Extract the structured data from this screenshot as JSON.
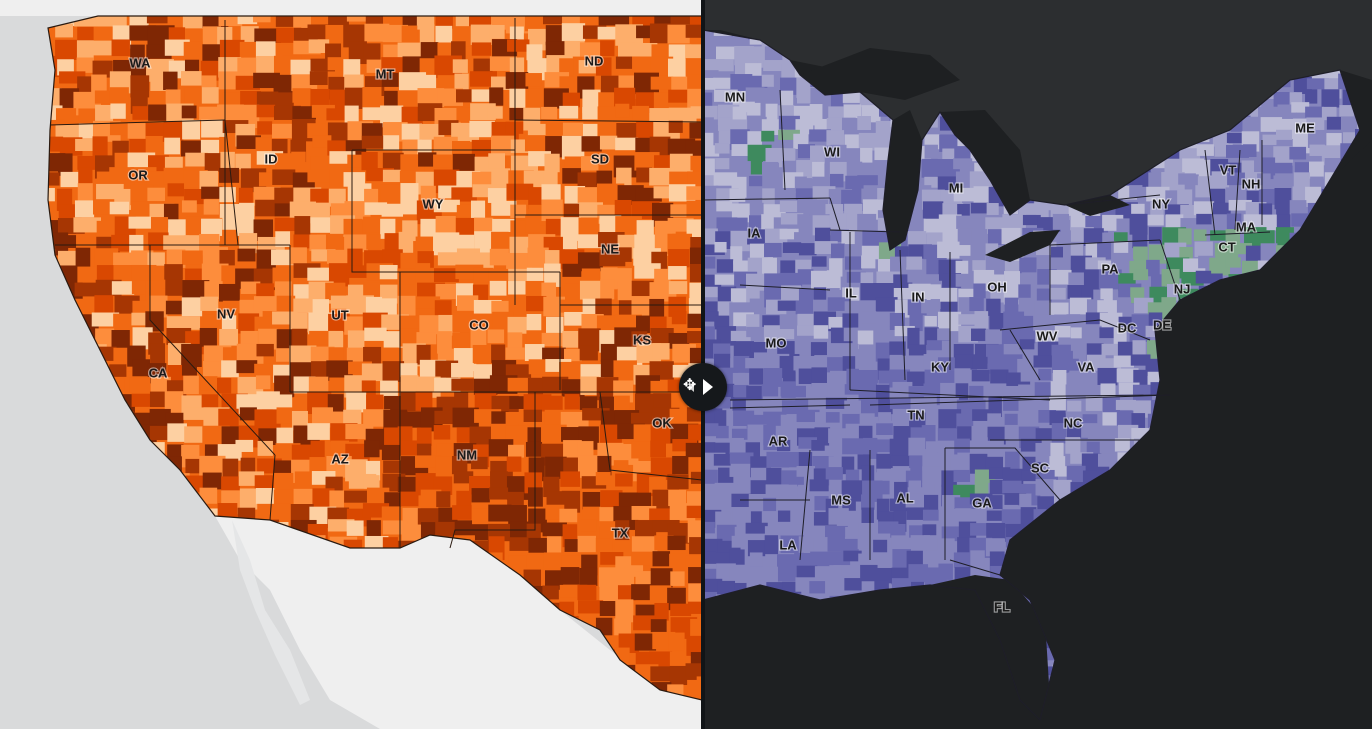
{
  "map": {
    "left_states": [
      "WA",
      "MT",
      "ND",
      "OR",
      "ID",
      "SD",
      "WY",
      "NE",
      "NV",
      "UT",
      "CO",
      "KS",
      "CA",
      "OK",
      "AZ",
      "NM",
      "TX"
    ],
    "right_states": [
      "MN",
      "ME",
      "WI",
      "MI",
      "VT",
      "NH",
      "NY",
      "MA",
      "IA",
      "CT",
      "PA",
      "NJ",
      "IL",
      "IN",
      "OH",
      "DC",
      "DE",
      "MO",
      "WV",
      "KY",
      "VA",
      "TN",
      "NC",
      "AR",
      "SC",
      "MS",
      "AL",
      "GA",
      "LA",
      "FL"
    ],
    "colors": {
      "left_palette": [
        "#7f2704",
        "#a63603",
        "#d94801",
        "#f16913",
        "#fd8d3c",
        "#fdae6b",
        "#fdd0a2"
      ],
      "right_palette": [
        "#4f4f9c",
        "#6a6ab0",
        "#8686bd",
        "#a3a3ca",
        "#bcbcd6",
        "#7fa88a",
        "#3e8a5e"
      ],
      "ocean_left": "#d9dadb",
      "land_left": "#efefef",
      "ocean_right": "#1e2022",
      "land_right": "#2c2e30",
      "divider": "#111417"
    },
    "swipe_handle": {
      "icon_left": "chevron-left-icon",
      "icon_right": "triangle-right-icon",
      "cursor": "resize-cursor-icon"
    }
  }
}
